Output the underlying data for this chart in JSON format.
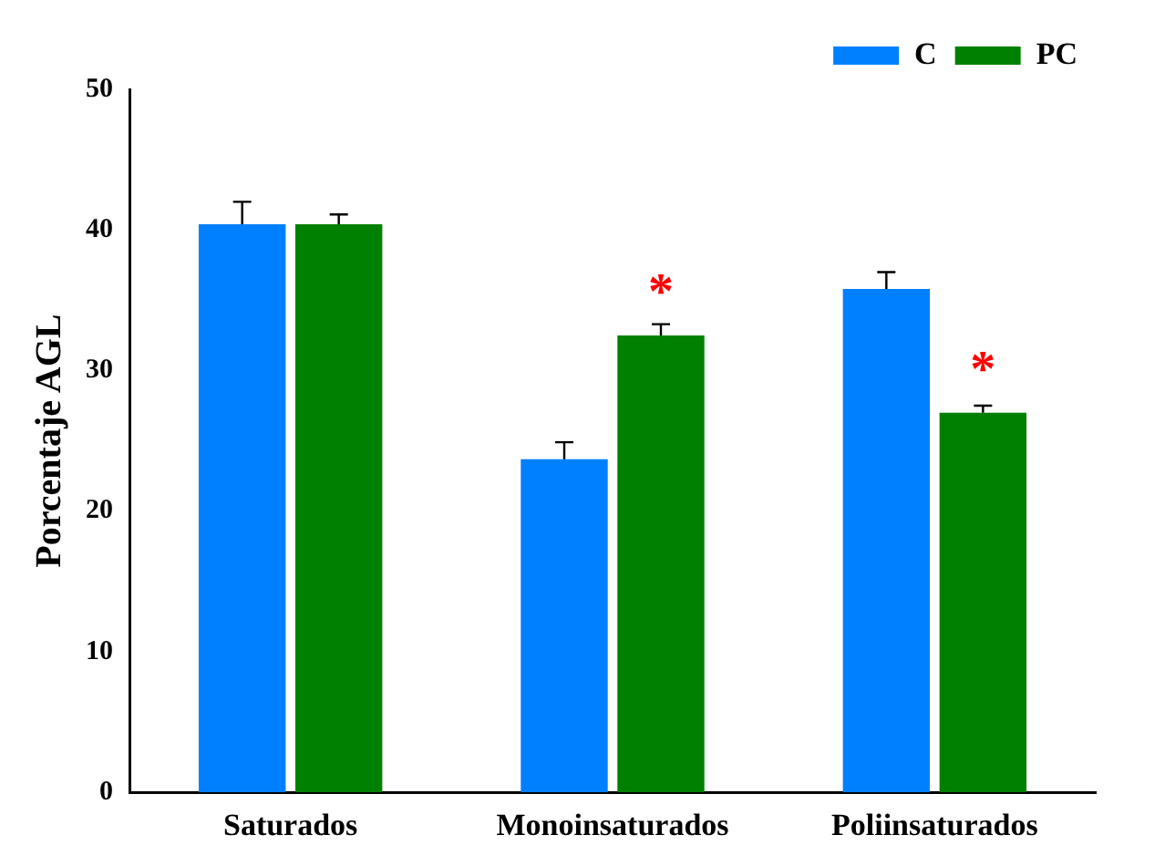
{
  "chart_data": {
    "type": "bar",
    "ylabel": "Porcentaje AGL",
    "categories": [
      "Saturados",
      "Monoinsaturados",
      "Poliinsaturados"
    ],
    "series": [
      {
        "name": "C",
        "color": "#0080ff",
        "values": [
          40.4,
          23.7,
          35.8
        ],
        "errors": [
          [
            40.4,
            42.0
          ],
          [
            23.7,
            24.9
          ],
          [
            35.8,
            37.0
          ]
        ]
      },
      {
        "name": "PC",
        "color": "#008000",
        "values": [
          40.4,
          32.5,
          27.0
        ],
        "errors": [
          [
            40.4,
            41.1
          ],
          [
            32.5,
            33.3
          ],
          [
            27.0,
            27.5
          ]
        ]
      }
    ],
    "ylim": [
      0,
      50
    ],
    "yticks": [
      0,
      10,
      20,
      30,
      40,
      50
    ],
    "grid": false,
    "legend": "top right",
    "annotations": [
      {
        "text": "*",
        "x": "Monoinsaturados",
        "y": 32.5
      },
      {
        "text": "*",
        "x": "Poliinsaturados",
        "y": 27.0
      }
    ]
  }
}
